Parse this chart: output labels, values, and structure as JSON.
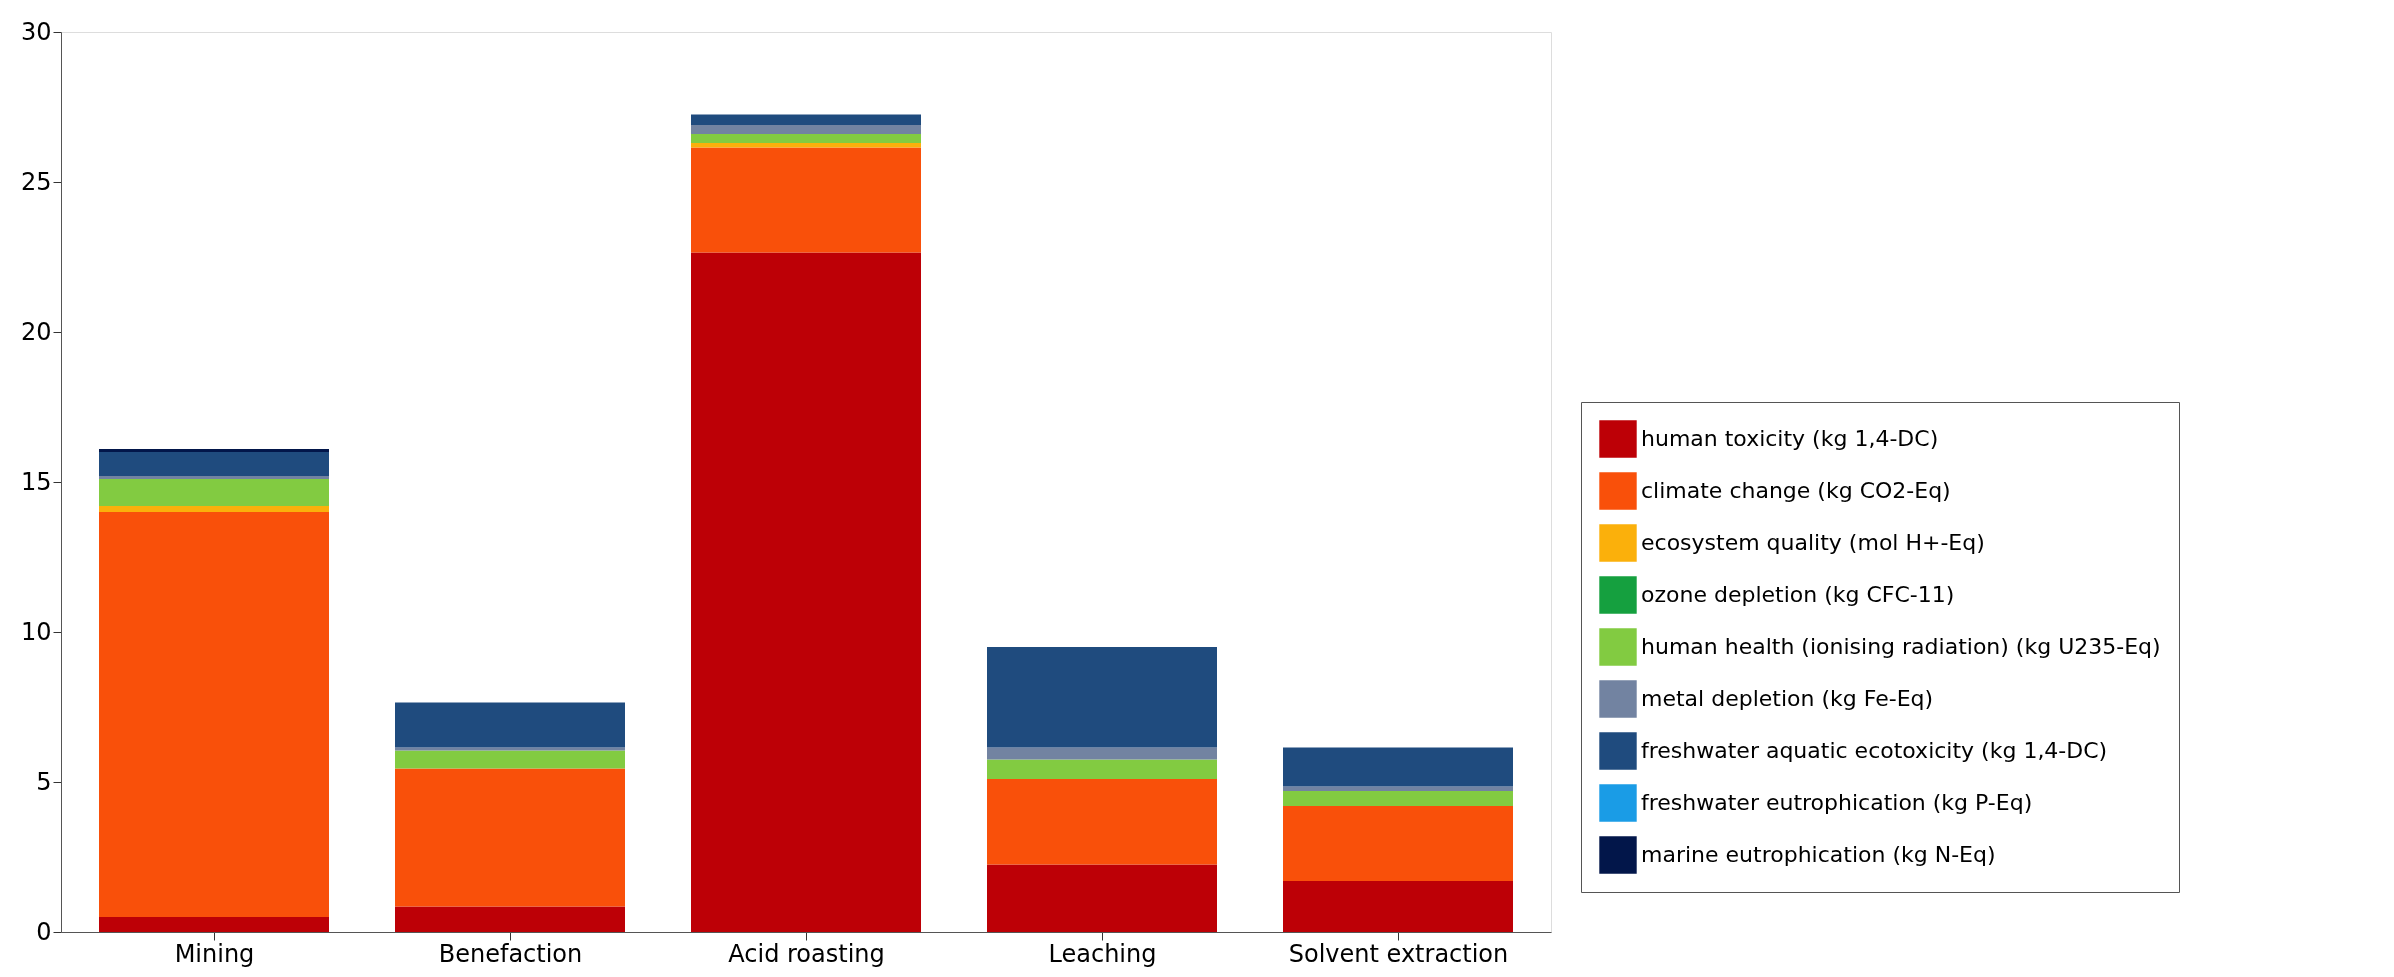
{
  "chart_data": {
    "type": "bar",
    "stacked": true,
    "categories": [
      "Mining",
      "Benefaction",
      "Acid roasting",
      "Leaching",
      "Solvent extraction"
    ],
    "ylim": [
      0,
      30
    ],
    "yticks": [
      0,
      5,
      10,
      15,
      20,
      25,
      30
    ],
    "grid": false,
    "legend": "right",
    "series": [
      {
        "name": "human toxicity (kg 1,4-DC)",
        "color": "#bd0006",
        "values": [
          0.5,
          0.85,
          22.65,
          2.25,
          1.7
        ]
      },
      {
        "name": "climate change (kg CO2-Eq)",
        "color": "#f9500a",
        "values": [
          13.5,
          4.6,
          3.5,
          2.85,
          2.5
        ]
      },
      {
        "name": "ecosystem quality (mol H+-Eq)",
        "color": "#fbb00b",
        "values": [
          0.2,
          0,
          0.15,
          0,
          0
        ]
      },
      {
        "name": "ozone depletion (kg CFC-11)",
        "color": "#15a03f",
        "values": [
          0,
          0,
          0,
          0,
          0
        ]
      },
      {
        "name": "human health (ionising radiation) (kg U235-Eq)",
        "color": "#82cb41",
        "values": [
          0.9,
          0.6,
          0.3,
          0.65,
          0.5
        ]
      },
      {
        "name": "metal depletion (kg Fe-Eq)",
        "color": "#7283a1",
        "values": [
          0.1,
          0.1,
          0.3,
          0.4,
          0.15
        ]
      },
      {
        "name": "freshwater aquatic ecotoxicity (kg 1,4-DC)",
        "color": "#1f4b7e",
        "values": [
          0.8,
          1.5,
          0.35,
          3.35,
          1.3
        ]
      },
      {
        "name": "freshwater eutrophication (kg P-Eq)",
        "color": "#1a9ce6",
        "values": [
          0,
          0,
          0,
          0,
          0
        ]
      },
      {
        "name": "marine eutrophication (kg N-Eq)",
        "color": "#02164a",
        "values": [
          0.1,
          0,
          0,
          0,
          0
        ]
      }
    ]
  }
}
